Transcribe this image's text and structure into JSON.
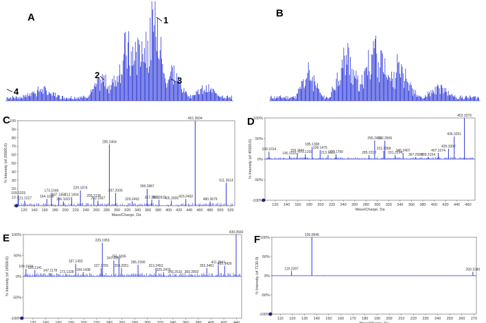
{
  "panels": {
    "A": {
      "letter": "A",
      "annotations": [
        "1",
        "2",
        "3",
        "4"
      ]
    },
    "B": {
      "letter": "B"
    },
    "C": {
      "letter": "C",
      "xlabel": "Mass/Charge, Da",
      "ylabel": "% Intensity (of 25000.0)",
      "xticks": [
        "120",
        "140",
        "160",
        "180",
        "200",
        "220",
        "240",
        "260",
        "280",
        "300",
        "320",
        "340",
        "360",
        "380",
        "400",
        "420",
        "440",
        "460",
        "480",
        "500",
        "520"
      ],
      "yticks": [
        "100",
        "90",
        "80",
        "70",
        "60",
        "50",
        "40",
        "30",
        "20",
        "10",
        "0"
      ]
    },
    "D": {
      "letter": "D",
      "xlabel": "Mass/Charge, Da",
      "ylabel": "% Intensity (of 45500.0)",
      "xticks": [
        "120",
        "140",
        "160",
        "180",
        "200",
        "220",
        "240",
        "260",
        "280",
        "300",
        "320",
        "340",
        "360",
        "380",
        "400",
        "420",
        "440",
        "460"
      ],
      "yticks": [
        "100%",
        "50%",
        "0%",
        "-50%",
        "-100%"
      ]
    },
    "E": {
      "letter": "E",
      "xlabel": "Mass/Charge, Da",
      "ylabel": "% Intensity (of 19500.0)",
      "xticks": [
        "120",
        "140",
        "160",
        "180",
        "200",
        "220",
        "240",
        "260",
        "280",
        "300",
        "320",
        "340",
        "360",
        "380",
        "400",
        "420",
        "440"
      ],
      "yticks": [
        "100%",
        "50%",
        "0%",
        "-50%",
        "-100%"
      ]
    },
    "F": {
      "letter": "F",
      "xlabel": "Mass/Charge, Da",
      "ylabel": "% Intensity (of 7130.0)",
      "xticks": [
        "110",
        "120",
        "130",
        "140",
        "150",
        "160",
        "170",
        "180",
        "190",
        "200",
        "210",
        "220",
        "230",
        "240",
        "250",
        "260",
        "270"
      ],
      "yticks": [
        "100%",
        "50%",
        "0%",
        "-50%",
        "-100%"
      ]
    }
  },
  "chart_data": [
    {
      "panel": "A",
      "type": "line",
      "description_level": "chromatogram",
      "x": [],
      "series": [
        {
          "values": []
        }
      ]
    },
    {
      "panel": "B",
      "type": "line",
      "x": [],
      "series": [
        {
          "values": []
        }
      ]
    },
    {
      "panel": "C",
      "type": "bar",
      "xlim": [
        108,
        528
      ],
      "ylim": [
        0,
        100
      ],
      "peaks": [
        {
          "mz": 109.1025,
          "y": 12,
          "label": "109.1025"
        },
        {
          "mz": 121.1027,
          "y": 6,
          "label": "121.1027"
        },
        {
          "mz": 164.119,
          "y": 8,
          "label": "164.1190"
        },
        {
          "mz": 173.1046,
          "y": 15,
          "label": "173.1046"
        },
        {
          "mz": 187.1458,
          "y": 10,
          "label": "187.1458"
        },
        {
          "mz": 196.1022,
          "y": 5,
          "label": "196.1022"
        },
        {
          "mz": 212.1604,
          "y": 10,
          "label": "212.1604"
        },
        {
          "mz": 229.1876,
          "y": 18,
          "label": "229.1876"
        },
        {
          "mz": 255.2136,
          "y": 9,
          "label": "255.2136"
        },
        {
          "mz": 263.1657,
          "y": 6,
          "label": "263.1657"
        },
        {
          "mz": 285.2464,
          "y": 72,
          "label": "285.2464"
        },
        {
          "mz": 297.2005,
          "y": 15,
          "label": "297.2005"
        },
        {
          "mz": 329.2492,
          "y": 5,
          "label": "329.2492"
        },
        {
          "mz": 358.2887,
          "y": 20,
          "label": "358.2887"
        },
        {
          "mz": 367.2839,
          "y": 7,
          "label": "367.2839"
        },
        {
          "mz": 381.2815,
          "y": 7,
          "label": "381.2815"
        },
        {
          "mz": 405.3006,
          "y": 6,
          "label": "405.3006"
        },
        {
          "mz": 433.2492,
          "y": 8,
          "label": "433.2492"
        },
        {
          "mz": 451.3604,
          "y": 100,
          "label": "451.3604"
        },
        {
          "mz": 480.3679,
          "y": 5,
          "label": "480.3679"
        },
        {
          "mz": 511.3614,
          "y": 27,
          "label": "511.3614"
        }
      ]
    },
    {
      "panel": "D",
      "type": "bar",
      "xlim": [
        102,
        472
      ],
      "ylim": [
        -100,
        100
      ],
      "peaks": [
        {
          "mz": 109.1014,
          "y": 18,
          "label": "109.1014"
        },
        {
          "mz": 145.1015,
          "y": 8,
          "label": "145.1015"
        },
        {
          "mz": 159.1167,
          "y": 15,
          "label": "159.1167"
        },
        {
          "mz": 173.133,
          "y": 12,
          "label": "173.1330"
        },
        {
          "mz": 185.1308,
          "y": 30,
          "label": "185.1308"
        },
        {
          "mz": 199.1475,
          "y": 22,
          "label": "199.1475"
        },
        {
          "mz": 213.1626,
          "y": 10,
          "label": "213.1626"
        },
        {
          "mz": 227.178,
          "y": 12,
          "label": "227.1780"
        },
        {
          "mz": 285.2218,
          "y": 10,
          "label": "285.2218"
        },
        {
          "mz": 295.2424,
          "y": 45,
          "label": "295.2424"
        },
        {
          "mz": 313.2506,
          "y": 45,
          "label": "313.2506"
        },
        {
          "mz": 311.2368,
          "y": 20,
          "label": "311.2368"
        },
        {
          "mz": 331.2294,
          "y": 10,
          "label": "331.2294"
        },
        {
          "mz": 345.2407,
          "y": 15,
          "label": "345.2407"
        },
        {
          "mz": 367.2584,
          "y": 5,
          "label": "367.2584"
        },
        {
          "mz": 389.3154,
          "y": 5,
          "label": "389.3154"
        },
        {
          "mz": 407.3274,
          "y": 15,
          "label": "407.3274"
        },
        {
          "mz": 425.3392,
          "y": 25,
          "label": "425.3392"
        },
        {
          "mz": 435.3251,
          "y": 55,
          "label": "435.3251"
        },
        {
          "mz": 453.3376,
          "y": 100,
          "label": "453.3376"
        }
      ]
    },
    {
      "panel": "E",
      "type": "bar",
      "xlim": [
        105,
        448
      ],
      "ylim": [
        -100,
        100
      ],
      "peaks": [
        {
          "mz": 109.1019,
          "y": 18,
          "label": "109.1019"
        },
        {
          "mz": 123.1141,
          "y": 15,
          "label": "123.1141"
        },
        {
          "mz": 147.1178,
          "y": 8,
          "label": "147.1178"
        },
        {
          "mz": 173.1328,
          "y": 5,
          "label": "173.1328"
        },
        {
          "mz": 187.1493,
          "y": 30,
          "label": "187.1493"
        },
        {
          "mz": 199.1438,
          "y": 10,
          "label": "199.1438"
        },
        {
          "mz": 227.1783,
          "y": 20,
          "label": "227.1783"
        },
        {
          "mz": 229.1953,
          "y": 80,
          "label": "229.1953"
        },
        {
          "mz": 247.2057,
          "y": 38,
          "label": "247.2057"
        },
        {
          "mz": 255.2095,
          "y": 42,
          "label": "255.2095"
        },
        {
          "mz": 259.2051,
          "y": 20,
          "label": "259.2051"
        },
        {
          "mz": 285.239,
          "y": 28,
          "label": "285.2390"
        },
        {
          "mz": 313.2452,
          "y": 20,
          "label": "313.2452"
        },
        {
          "mz": 325.2476,
          "y": 10,
          "label": "325.2476"
        },
        {
          "mz": 343.261,
          "y": 5,
          "label": "343.2610"
        },
        {
          "mz": 369.2892,
          "y": 5,
          "label": "369.2892"
        },
        {
          "mz": 393.3481,
          "y": 20,
          "label": "393.3481"
        },
        {
          "mz": 411.3561,
          "y": 28,
          "label": "411.3561"
        },
        {
          "mz": 421.3426,
          "y": 25,
          "label": "421.3426"
        },
        {
          "mz": 439.356,
          "y": 100,
          "label": "439.3560"
        }
      ]
    },
    {
      "panel": "F",
      "type": "bar",
      "xlim": [
        103,
        272
      ],
      "ylim": [
        -100,
        100
      ],
      "peaks": [
        {
          "mz": 119.2397,
          "y": 12,
          "label": "119.2397"
        },
        {
          "mz": 136.0845,
          "y": 100,
          "label": "136.0845"
        },
        {
          "mz": 269.104,
          "y": 10,
          "label": "269.1040"
        }
      ]
    }
  ]
}
